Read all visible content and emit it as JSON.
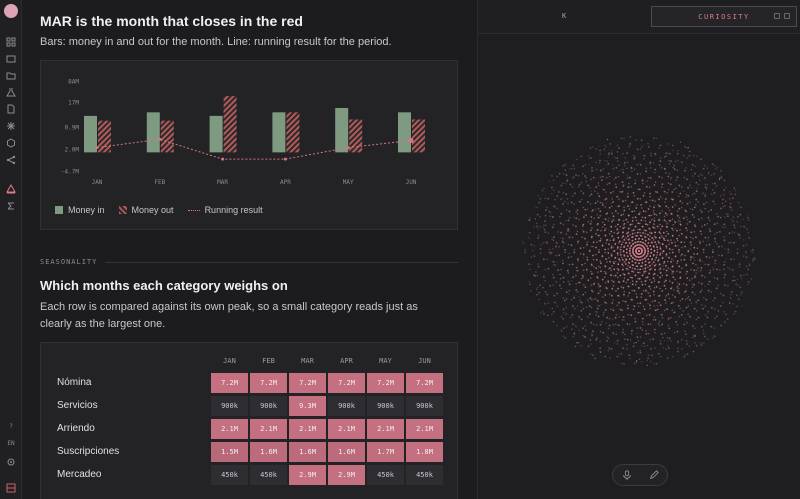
{
  "chart": {
    "title": "MAR is the month that closes in the red",
    "subtitle": "Bars: money in and out for the month. Line: running result for the period."
  },
  "chart_data": {
    "type": "bar",
    "categories": [
      "JAN",
      "FEB",
      "MAR",
      "APR",
      "MAY",
      "JUN"
    ],
    "y_tick_labels": [
      "8AM",
      "17M",
      "0.9M",
      "2.0M",
      "-4.7M"
    ],
    "series": [
      {
        "name": "Money in",
        "values": [
          9.2,
          10.1,
          9.2,
          10.1,
          11.2,
          10.1
        ]
      },
      {
        "name": "Money out",
        "values": [
          8.0,
          8.0,
          14.2,
          10.1,
          8.3,
          8.3
        ]
      },
      {
        "name": "Running result",
        "kind": "line",
        "values": [
          1.2,
          3.3,
          -1.7,
          -1.7,
          1.2,
          3.0
        ]
      }
    ],
    "ylim": [
      -4.7,
      18
    ],
    "legend_position": "bottom-left",
    "colors": {
      "money_in": "#7e9a80",
      "money_out": "#b35a58",
      "running": "#d77680"
    }
  },
  "legend": {
    "money_in": "Money in",
    "money_out": "Money out",
    "running": "Running result"
  },
  "section": {
    "label": "SEASONALITY"
  },
  "heatmap": {
    "title": "Which months each category weighs on",
    "subtitle": "Each row is compared against its own peak, so a small category reads just as clearly as the largest one.",
    "months": [
      "JAN",
      "FEB",
      "MAR",
      "APR",
      "MAY",
      "JUN"
    ],
    "rows": [
      {
        "label": "Nómina",
        "cells": [
          "7.2M",
          "7.2M",
          "7.2M",
          "7.2M",
          "7.2M",
          "7.2M"
        ],
        "levels": [
          1,
          1,
          1,
          1,
          1,
          1
        ]
      },
      {
        "label": "Servicios",
        "cells": [
          "900k",
          "900k",
          "9.3M",
          "900k",
          "900k",
          "900k"
        ],
        "levels": [
          0.1,
          0.1,
          1,
          0.1,
          0.1,
          0.1
        ]
      },
      {
        "label": "Arriendo",
        "cells": [
          "2.1M",
          "2.1M",
          "2.1M",
          "2.1M",
          "2.1M",
          "2.1M"
        ],
        "levels": [
          1,
          1,
          1,
          1,
          1,
          1
        ]
      },
      {
        "label": "Suscripciones",
        "cells": [
          "1.5M",
          "1.6M",
          "1.6M",
          "1.6M",
          "1.7M",
          "1.8M"
        ],
        "levels": [
          0.83,
          0.89,
          0.89,
          0.89,
          0.94,
          1
        ]
      },
      {
        "label": "Mercadeo",
        "cells": [
          "450k",
          "450k",
          "2.9M",
          "2.9M",
          "450k",
          "450k"
        ],
        "levels": [
          0.15,
          0.15,
          1,
          1,
          0.15,
          0.15
        ]
      }
    ]
  },
  "right_panel": {
    "k_label": "K",
    "mode_label": "CURIOSITY"
  },
  "rail": {
    "lang": "EN",
    "help": "?"
  },
  "colors": {
    "accent": "#e07a8a",
    "heat_high": "#b86a78",
    "heat_low": "#2e2e32"
  }
}
